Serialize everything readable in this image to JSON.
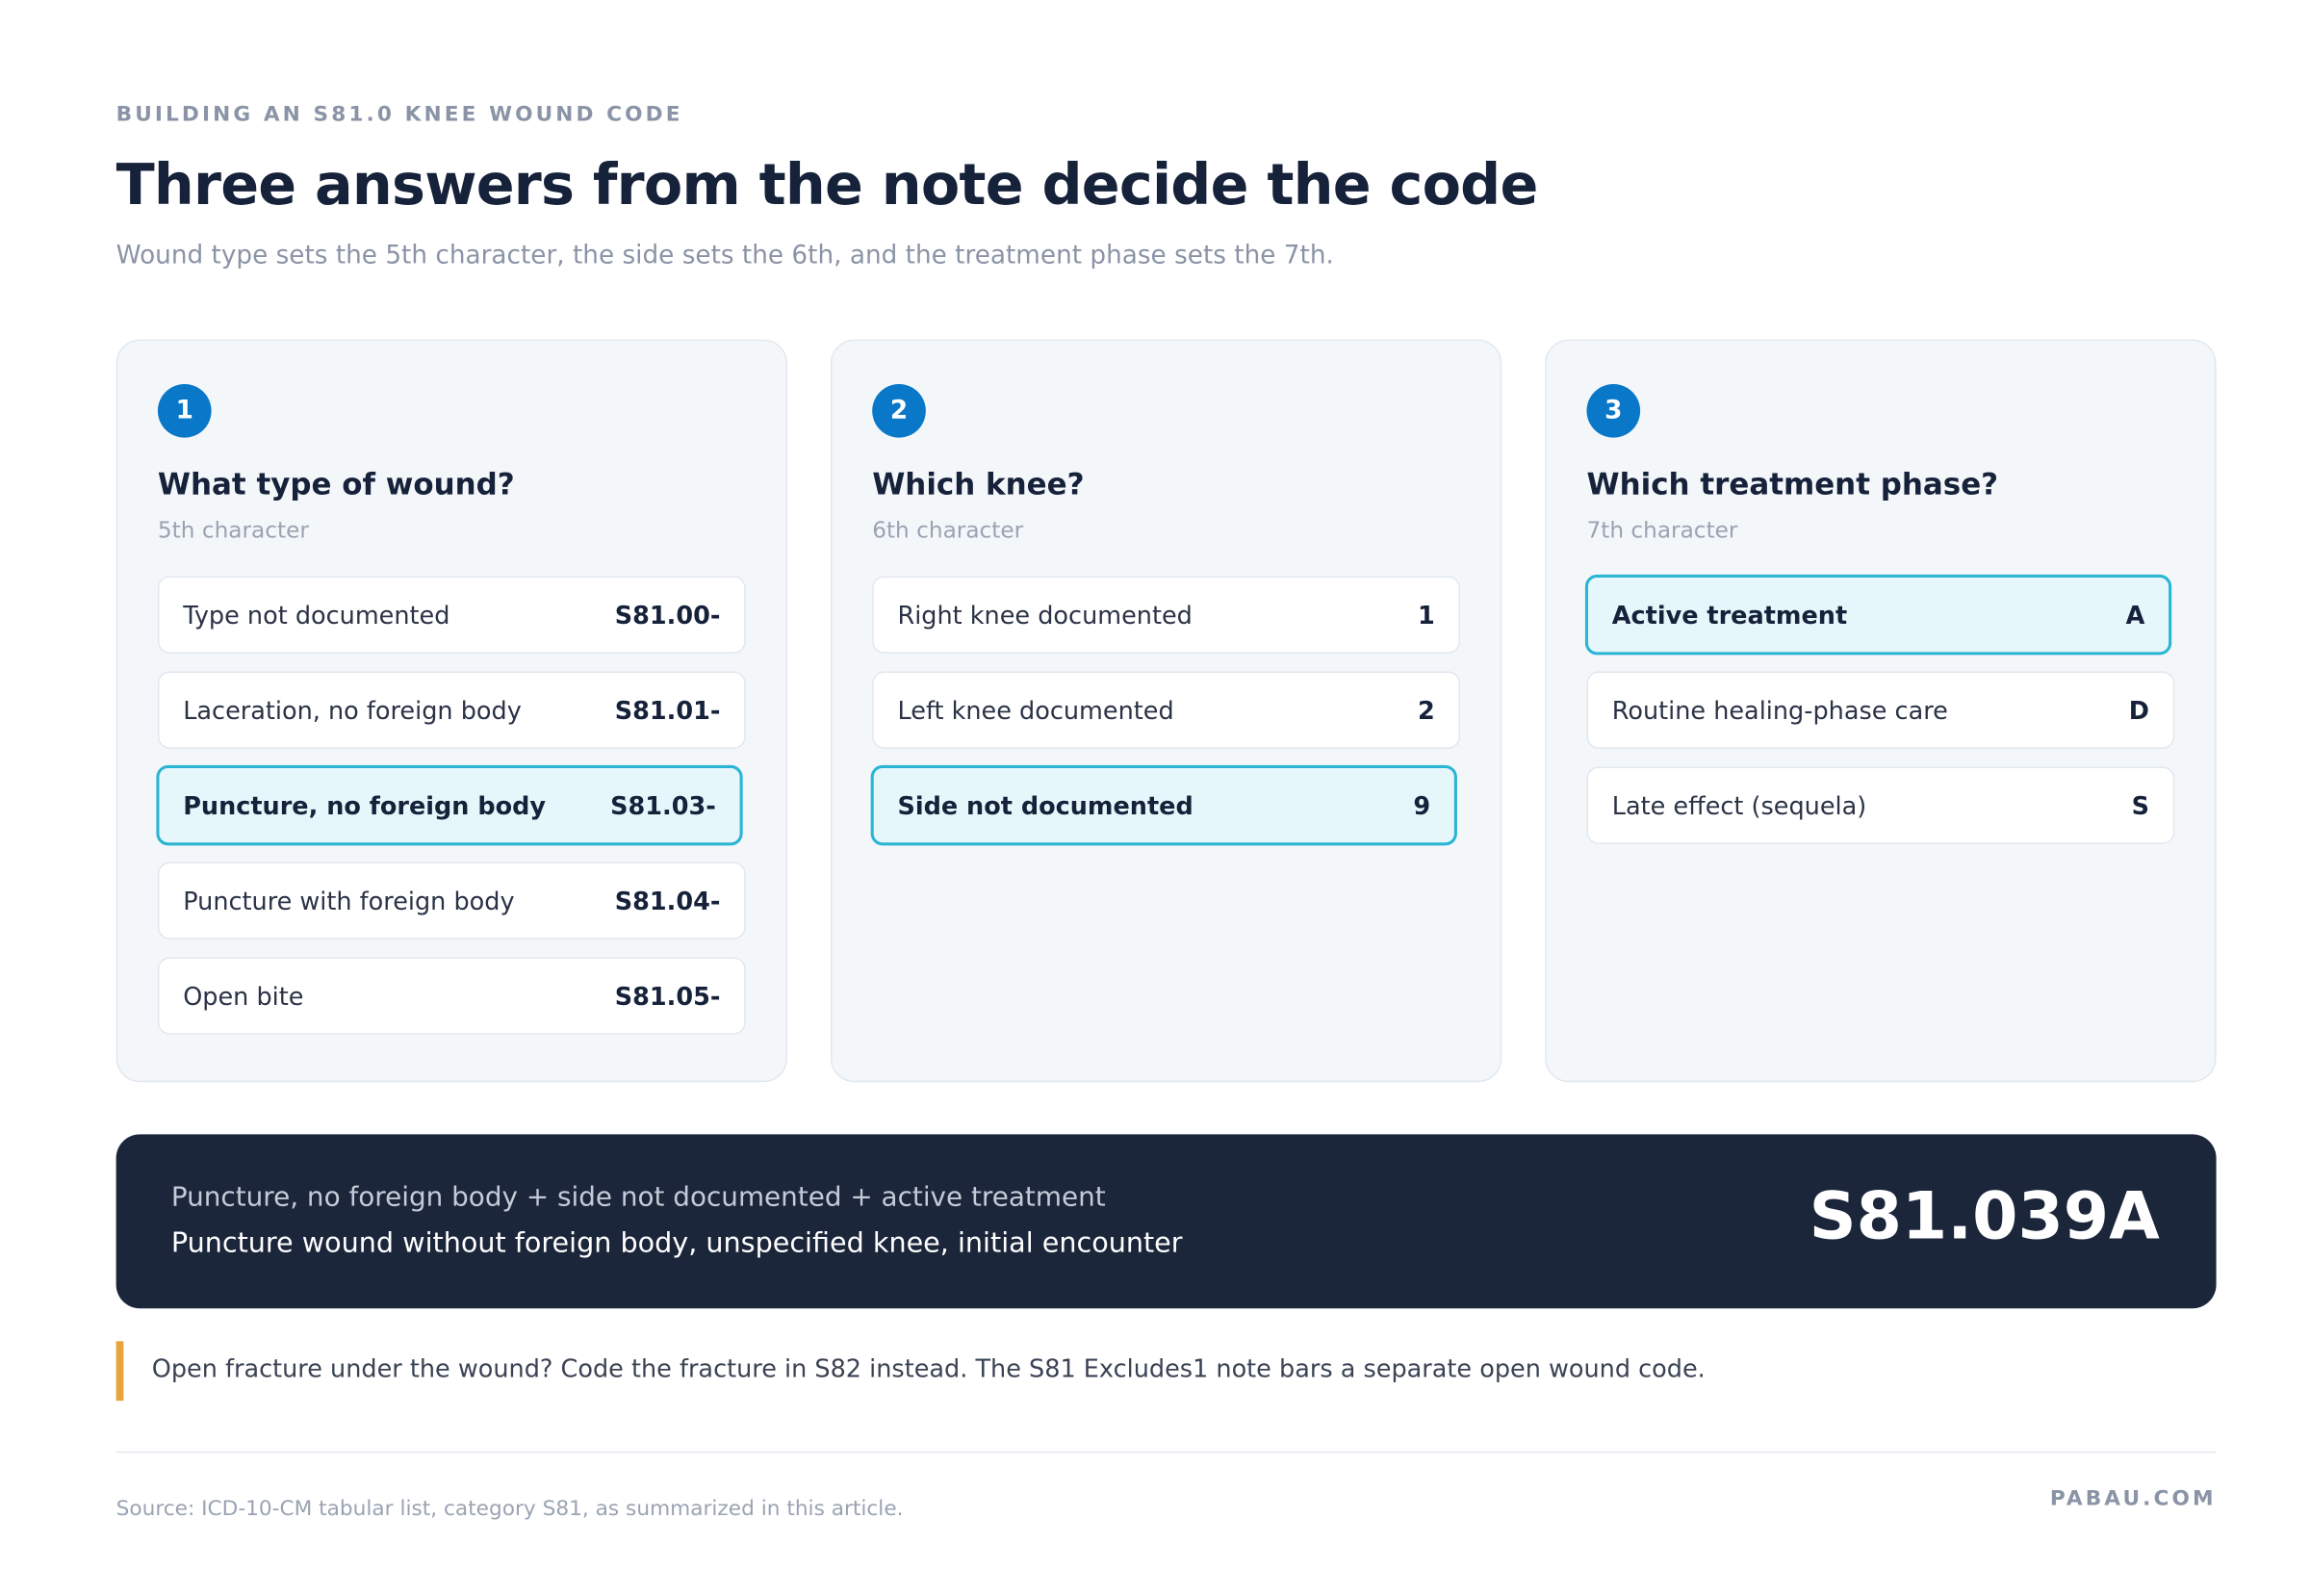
{
  "header": {
    "eyebrow": "BUILDING AN S81.0 KNEE WOUND CODE",
    "title": "Three answers from the note decide the code",
    "subtitle": "Wound type sets the 5th character, the side sets the 6th, and the treatment phase sets the 7th."
  },
  "steps": [
    {
      "number": "1",
      "question": "What type of wound?",
      "character": "5th character",
      "options": [
        {
          "label": "Type not documented",
          "code": "S81.00-",
          "selected": false
        },
        {
          "label": "Laceration, no foreign body",
          "code": "S81.01-",
          "selected": false
        },
        {
          "label": "Puncture, no foreign body",
          "code": "S81.03-",
          "selected": true
        },
        {
          "label": "Puncture with foreign body",
          "code": "S81.04-",
          "selected": false
        },
        {
          "label": "Open bite",
          "code": "S81.05-",
          "selected": false
        }
      ]
    },
    {
      "number": "2",
      "question": "Which knee?",
      "character": "6th character",
      "options": [
        {
          "label": "Right knee documented",
          "code": "1",
          "selected": false
        },
        {
          "label": "Left knee documented",
          "code": "2",
          "selected": false
        },
        {
          "label": "Side not documented",
          "code": "9",
          "selected": true
        }
      ]
    },
    {
      "number": "3",
      "question": "Which treatment phase?",
      "character": "7th character",
      "options": [
        {
          "label": "Active treatment",
          "code": "A",
          "selected": true
        },
        {
          "label": "Routine healing-phase care",
          "code": "D",
          "selected": false
        },
        {
          "label": "Late effect (sequela)",
          "code": "S",
          "selected": false
        }
      ]
    }
  ],
  "result": {
    "summary": "Puncture, no foreign body + side not documented + active treatment",
    "description": "Puncture wound without foreign body, unspecified knee, initial encounter",
    "code": "S81.039A"
  },
  "note": {
    "text": "Open fracture under the wound? Code the fracture in S82 instead. The S81 Excludes1 note bars a separate open wound code."
  },
  "footer": {
    "source": "Source: ICD-10-CM tabular list, category S81, as summarized in this article.",
    "brand": "PABAU.COM"
  }
}
